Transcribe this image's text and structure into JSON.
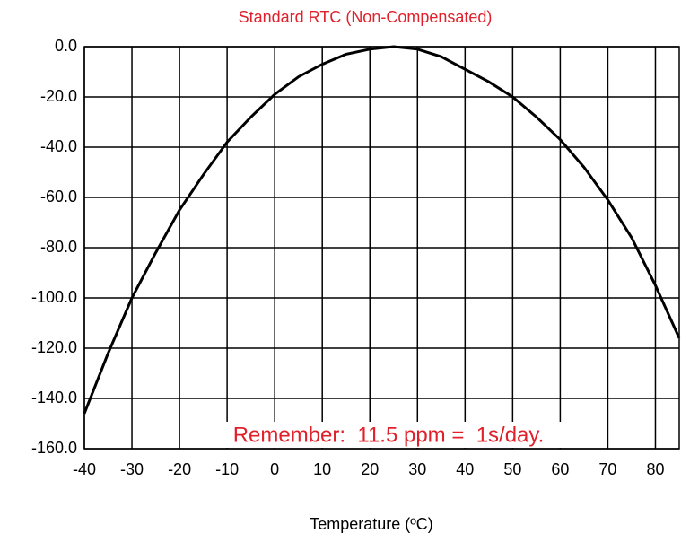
{
  "chart_data": {
    "type": "line",
    "title": "Standard RTC (Non-Compensated)",
    "x_label": "Temperature (ºC)",
    "annotation": "Remember:  11.5 ppm =  1s/day.",
    "x": [
      -40,
      -35,
      -30,
      -25,
      -20,
      -15,
      -10,
      -5,
      0,
      5,
      10,
      15,
      20,
      25,
      30,
      35,
      40,
      45,
      50,
      55,
      60,
      65,
      70,
      75,
      80,
      85
    ],
    "series": [
      {
        "color": "#000000",
        "values": [
          -146,
          -122,
          -100,
          -82,
          -65,
          -51,
          -38,
          -28,
          -19,
          -12,
          -7,
          -3,
          -1,
          0,
          -1,
          -4,
          -9,
          -14,
          -20,
          -28,
          -37,
          -48,
          -61,
          -76,
          -95,
          -116
        ]
      }
    ],
    "xlim": [
      -40,
      85
    ],
    "xticks": [
      -40,
      -30,
      -20,
      -10,
      0,
      10,
      20,
      30,
      40,
      50,
      60,
      70,
      80
    ],
    "ylim": [
      -160,
      0
    ],
    "yticks": [
      {
        "value": 0,
        "label": "0.0"
      },
      {
        "value": -20,
        "label": "-20.0"
      },
      {
        "value": -40,
        "label": "-40.0"
      },
      {
        "value": -60,
        "label": "-60.0"
      },
      {
        "value": -80,
        "label": "-80.0"
      },
      {
        "value": -100,
        "label": "-100.0"
      },
      {
        "value": -120,
        "label": "-120.0"
      },
      {
        "value": -140,
        "label": "-140.0"
      },
      {
        "value": -160,
        "label": "-160.0"
      }
    ],
    "grid": true,
    "title_color": "#e0202a",
    "annotation_color": "#e0202a"
  }
}
